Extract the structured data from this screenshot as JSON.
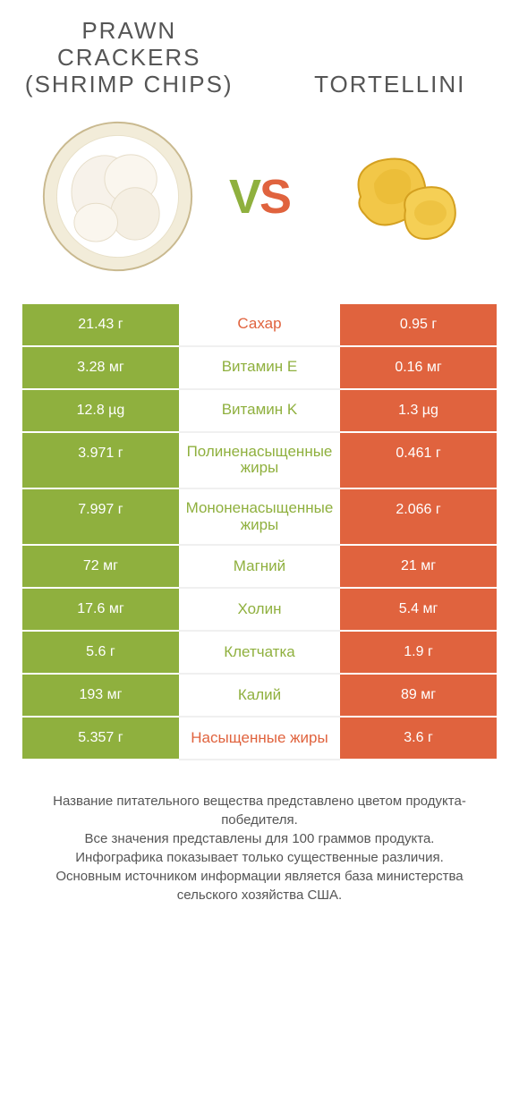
{
  "colors": {
    "left_bg": "#8fb03e",
    "right_bg": "#e0633e",
    "left_text": "#8fb03e",
    "right_text": "#e0633e",
    "body_text": "#555555",
    "white": "#ffffff"
  },
  "titles": {
    "left": "PRAWN CRACKERS (SHRIMP CHIPS)",
    "right": "TORTELLINI"
  },
  "vs": {
    "v": "V",
    "s": "S"
  },
  "rows": [
    {
      "left": "21.43 г",
      "label": "Сахар",
      "right": "0.95 г",
      "winner": "right"
    },
    {
      "left": "3.28 мг",
      "label": "Витамин E",
      "right": "0.16 мг",
      "winner": "left"
    },
    {
      "left": "12.8 µg",
      "label": "Витамин K",
      "right": "1.3 µg",
      "winner": "left"
    },
    {
      "left": "3.971 г",
      "label": "Полиненасыщенные жиры",
      "right": "0.461 г",
      "winner": "left"
    },
    {
      "left": "7.997 г",
      "label": "Мононенасыщенные жиры",
      "right": "2.066 г",
      "winner": "left"
    },
    {
      "left": "72 мг",
      "label": "Магний",
      "right": "21 мг",
      "winner": "left"
    },
    {
      "left": "17.6 мг",
      "label": "Холин",
      "right": "5.4 мг",
      "winner": "left"
    },
    {
      "left": "5.6 г",
      "label": "Клетчатка",
      "right": "1.9 г",
      "winner": "left"
    },
    {
      "left": "193 мг",
      "label": "Калий",
      "right": "89 мг",
      "winner": "left"
    },
    {
      "left": "5.357 г",
      "label": "Насыщенные жиры",
      "right": "3.6 г",
      "winner": "right"
    }
  ],
  "footer": {
    "line1": "Название питательного вещества представлено цветом продукта-победителя.",
    "line2": "Все значения представлены для 100 граммов продукта.",
    "line3": "Инфографика показывает только существенные различия.",
    "line4": "Основным источником информации является база министерства сельского хозяйства США."
  }
}
